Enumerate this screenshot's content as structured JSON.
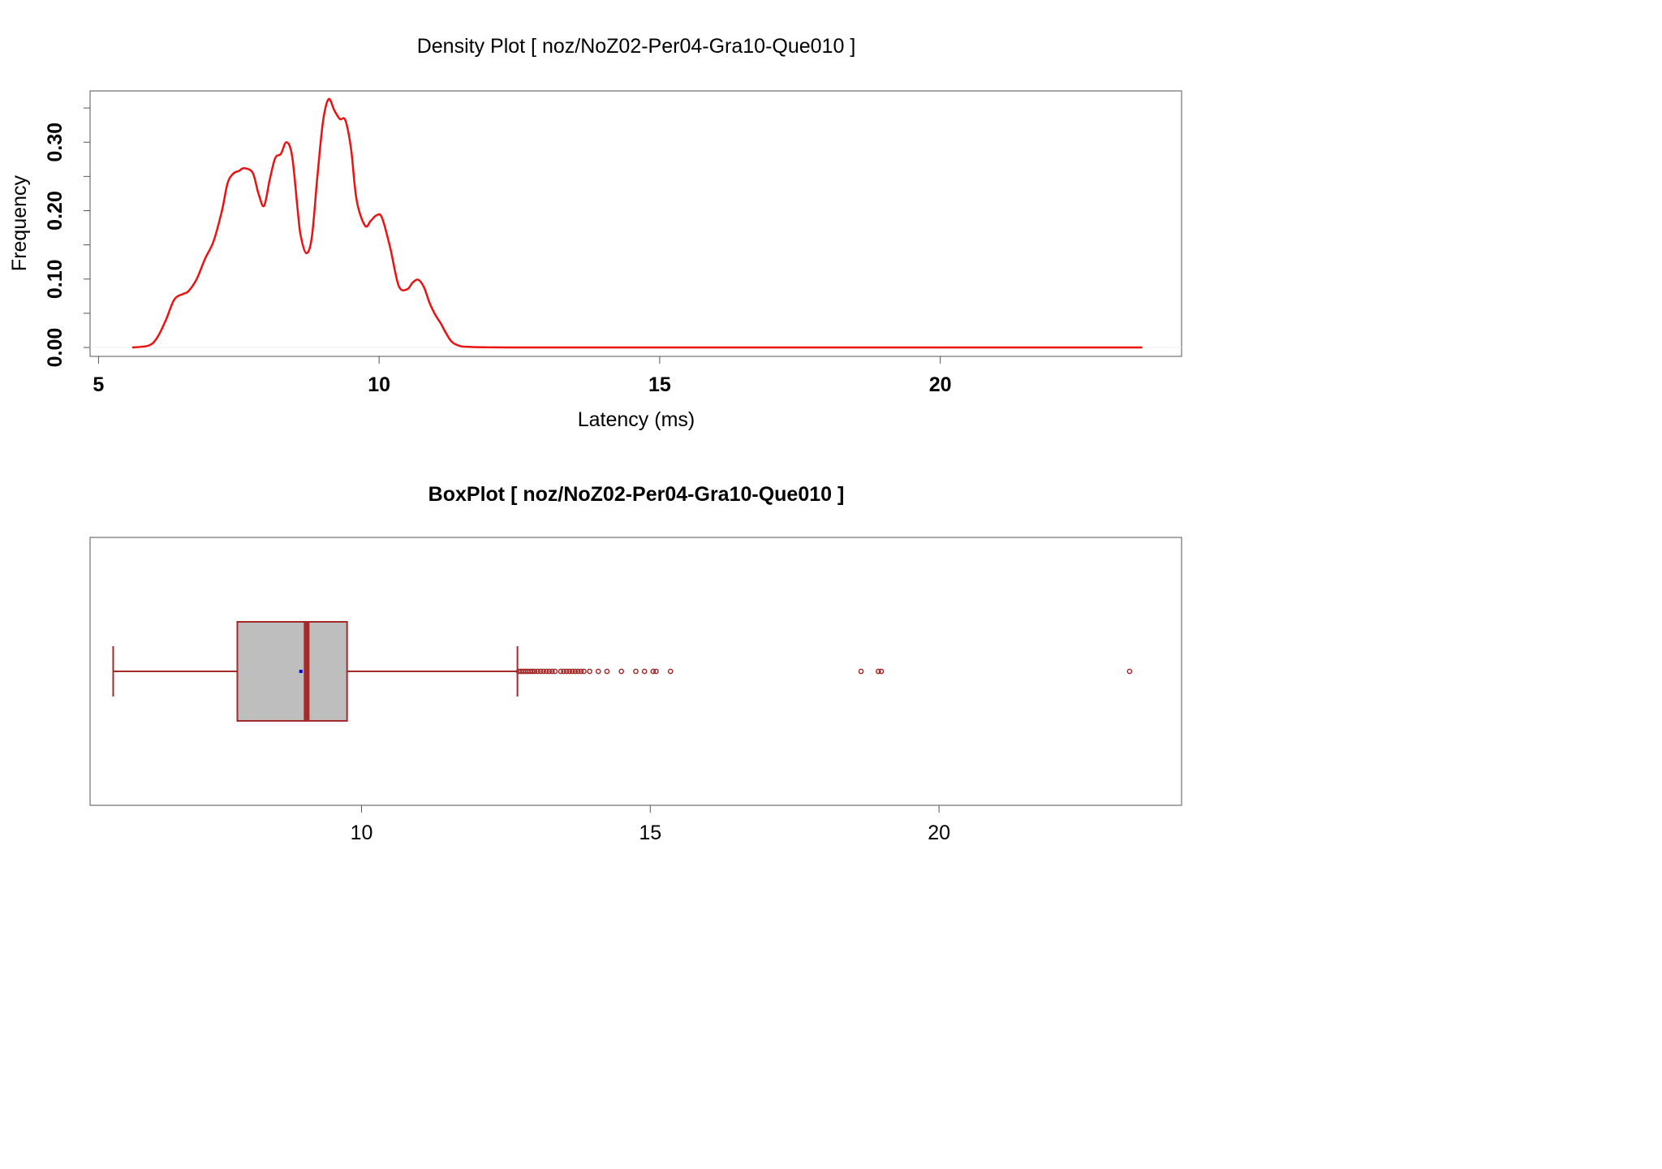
{
  "chart_data": [
    {
      "type": "line",
      "title": "Density Plot [ noz/NoZ02-Per04-Gra10-Que010 ]",
      "xlabel": "Latency (ms)",
      "ylabel": "Frequency",
      "xlim": [
        4.85,
        24.3
      ],
      "ylim": [
        -0.013,
        0.375
      ],
      "x_ticks": [
        5,
        10,
        15,
        20
      ],
      "x_tick_labels": [
        "5",
        "10",
        "15",
        "20"
      ],
      "y_ticks": [
        0.0,
        0.1,
        0.2,
        0.3
      ],
      "y_tick_labels": [
        "0.00",
        "0.10",
        "0.20",
        "0.30"
      ],
      "y_minor_ticks": [
        0.05,
        0.15,
        0.25,
        0.35
      ],
      "grid": false,
      "colors": {
        "line": "#ee1111",
        "baseline": "#eeeeee"
      },
      "series": [
        {
          "x": [
            5.6,
            5.9,
            6.05,
            6.2,
            6.35,
            6.5,
            6.6,
            6.75,
            6.9,
            7.05,
            7.2,
            7.3,
            7.4,
            7.5,
            7.6,
            7.75,
            7.85,
            7.95,
            8.05,
            8.15,
            8.25,
            8.35,
            8.45,
            8.55,
            8.6,
            8.7,
            8.8,
            8.9,
            9.0,
            9.1,
            9.2,
            9.3,
            9.4,
            9.5,
            9.6,
            9.75,
            9.85,
            9.95,
            10.05,
            10.2,
            10.35,
            10.5,
            10.6,
            10.7,
            10.8,
            10.9,
            11.0,
            11.1,
            11.2,
            11.3,
            11.45,
            11.6,
            11.75,
            11.9,
            12.05,
            12.3,
            13.0,
            14.0,
            16.0,
            18.0,
            20.0,
            22.0,
            23.6
          ],
          "y": [
            0.0,
            0.003,
            0.015,
            0.04,
            0.07,
            0.078,
            0.082,
            0.1,
            0.13,
            0.155,
            0.2,
            0.24,
            0.254,
            0.258,
            0.262,
            0.255,
            0.225,
            0.207,
            0.245,
            0.277,
            0.283,
            0.3,
            0.28,
            0.2,
            0.165,
            0.138,
            0.16,
            0.25,
            0.33,
            0.363,
            0.347,
            0.334,
            0.332,
            0.29,
            0.215,
            0.178,
            0.185,
            0.193,
            0.19,
            0.145,
            0.09,
            0.085,
            0.095,
            0.099,
            0.088,
            0.065,
            0.048,
            0.035,
            0.02,
            0.008,
            0.002,
            0.001,
            0.0005,
            0.0003,
            0.0002,
            0.0001,
            0.0,
            0.0,
            0.0,
            0.0,
            0.0,
            0.0,
            0.0
          ]
        }
      ]
    },
    {
      "type": "boxplot",
      "title": "BoxPlot [ noz/NoZ02-Per04-Gra10-Que010 ]",
      "xlim": [
        5.3,
        24.2
      ],
      "x_ticks": [
        10,
        15,
        20
      ],
      "x_tick_labels": [
        "10",
        "15",
        "20"
      ],
      "grid": false,
      "colors": {
        "box_fill": "#bebebe",
        "box_stroke": "#a52a2a",
        "mean_marker": "#0000ff"
      },
      "whisker_low": 5.7,
      "q1": 7.85,
      "median": 9.05,
      "q3": 9.75,
      "whisker_high": 12.7,
      "mean": 8.95,
      "outliers": [
        12.72,
        12.76,
        12.8,
        12.84,
        12.88,
        12.92,
        12.96,
        13.0,
        13.05,
        13.1,
        13.15,
        13.2,
        13.25,
        13.3,
        13.35,
        13.45,
        13.5,
        13.55,
        13.6,
        13.65,
        13.7,
        13.75,
        13.8,
        13.85,
        13.95,
        14.1,
        14.25,
        14.5,
        14.75,
        14.9,
        15.05,
        15.1,
        15.35,
        18.65,
        18.95,
        19.0,
        23.3
      ]
    }
  ]
}
